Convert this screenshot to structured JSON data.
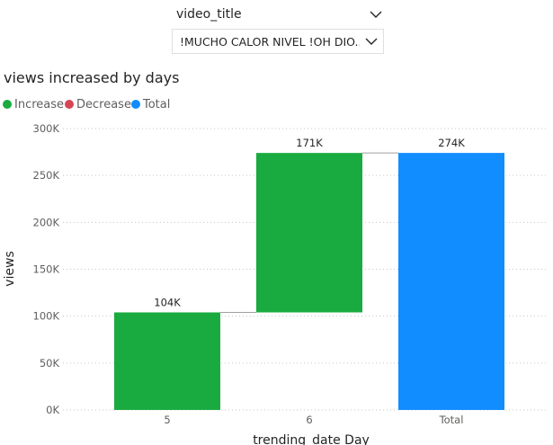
{
  "slicer": {
    "title": "video_title",
    "selected": "!MUCHO CALOR NIVEL !OH DIO...",
    "chevron_icon": "chevron-down-icon"
  },
  "chart_title": "views increased by days",
  "legend": [
    {
      "label": "Increase",
      "color": "#1aab40"
    },
    {
      "label": "Decrease",
      "color": "#d64554"
    },
    {
      "label": "Total",
      "color": "#118dff"
    }
  ],
  "chart_data": {
    "type": "waterfall",
    "title": "views increased by days",
    "xlabel": "trending_date Day",
    "ylabel": "views",
    "ylim": [
      0,
      300000
    ],
    "yticks": [
      0,
      50000,
      100000,
      150000,
      200000,
      250000,
      300000
    ],
    "ytick_labels": [
      "0K",
      "50K",
      "100K",
      "150K",
      "200K",
      "250K",
      "300K"
    ],
    "categories": [
      "5",
      "6",
      "Total"
    ],
    "bars": [
      {
        "category": "5",
        "kind": "Increase",
        "start": 0,
        "end": 104000,
        "label": "104K"
      },
      {
        "category": "6",
        "kind": "Increase",
        "start": 104000,
        "end": 274000,
        "label": "171K"
      },
      {
        "category": "Total",
        "kind": "Total",
        "start": 0,
        "end": 274000,
        "label": "274K"
      }
    ],
    "colors": {
      "Increase": "#1aab40",
      "Decrease": "#d64554",
      "Total": "#118dff"
    },
    "grid": true,
    "legend_position": "top-left"
  }
}
